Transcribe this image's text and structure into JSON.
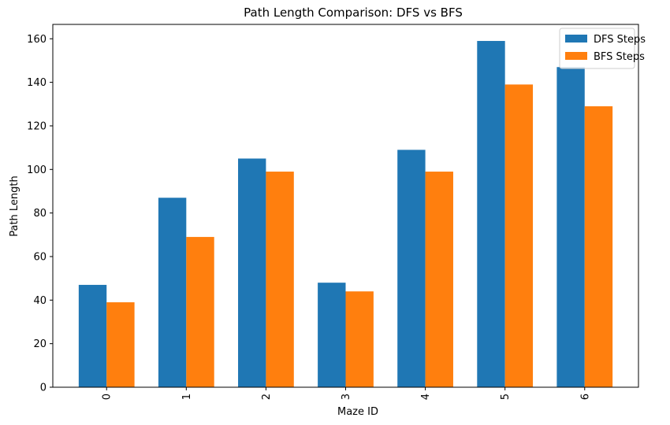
{
  "chart_data": {
    "type": "bar",
    "title": "Path Length Comparison: DFS vs BFS",
    "xlabel": "Maze ID",
    "ylabel": "Path Length",
    "categories": [
      "0",
      "1",
      "2",
      "3",
      "4",
      "5",
      "6"
    ],
    "series": [
      {
        "name": "DFS Steps",
        "color": "#1f77b4",
        "values": [
          47,
          87,
          105,
          48,
          109,
          159,
          147
        ]
      },
      {
        "name": "BFS Steps",
        "color": "#ff7f0e",
        "values": [
          39,
          69,
          99,
          44,
          99,
          139,
          129
        ]
      }
    ],
    "ylim": [
      0,
      166.6
    ],
    "yticks": [
      0,
      20,
      40,
      60,
      80,
      100,
      120,
      140,
      160
    ],
    "xtick_rotation": "vertical",
    "grid": false,
    "legend": "top-right"
  }
}
